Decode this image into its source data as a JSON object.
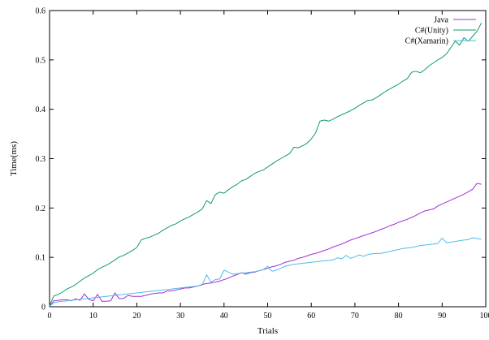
{
  "chart_data": {
    "type": "line",
    "xlabel": "Trials",
    "ylabel": "Time(ms)",
    "xlim": [
      0,
      100
    ],
    "ylim": [
      0,
      0.6
    ],
    "x_ticks": [
      "0",
      "10",
      "20",
      "30",
      "40",
      "50",
      "60",
      "70",
      "80",
      "90",
      "100"
    ],
    "y_ticks": [
      "0",
      "0.1",
      "0.2",
      "0.3",
      "0.4",
      "0.5",
      "0.6"
    ],
    "grid": false,
    "legend_position": "top-right",
    "x": [
      0,
      1,
      2,
      3,
      4,
      5,
      6,
      7,
      8,
      9,
      10,
      11,
      12,
      13,
      14,
      15,
      16,
      17,
      18,
      19,
      20,
      21,
      22,
      23,
      24,
      25,
      26,
      27,
      28,
      29,
      30,
      31,
      32,
      33,
      34,
      35,
      36,
      37,
      38,
      39,
      40,
      41,
      42,
      43,
      44,
      45,
      46,
      47,
      48,
      49,
      50,
      51,
      52,
      53,
      54,
      55,
      56,
      57,
      58,
      59,
      60,
      61,
      62,
      63,
      64,
      65,
      66,
      67,
      68,
      69,
      70,
      71,
      72,
      73,
      74,
      75,
      76,
      77,
      78,
      79,
      80,
      81,
      82,
      83,
      84,
      85,
      86,
      87,
      88,
      89,
      90,
      91,
      92,
      93,
      94,
      95,
      96,
      97,
      98,
      99
    ],
    "series": [
      {
        "name": "Java",
        "color": "#9f2fd4",
        "values": [
          0.001,
          0.012,
          0.013,
          0.014,
          0.014,
          0.012,
          0.016,
          0.013,
          0.026,
          0.015,
          0.012,
          0.025,
          0.011,
          0.011,
          0.012,
          0.028,
          0.016,
          0.017,
          0.023,
          0.021,
          0.021,
          0.021,
          0.023,
          0.025,
          0.027,
          0.028,
          0.028,
          0.032,
          0.032,
          0.034,
          0.036,
          0.038,
          0.038,
          0.04,
          0.042,
          0.045,
          0.047,
          0.048,
          0.05,
          0.052,
          0.055,
          0.058,
          0.062,
          0.065,
          0.069,
          0.066,
          0.069,
          0.07,
          0.073,
          0.075,
          0.078,
          0.081,
          0.083,
          0.086,
          0.09,
          0.092,
          0.094,
          0.098,
          0.1,
          0.103,
          0.106,
          0.108,
          0.111,
          0.114,
          0.117,
          0.121,
          0.124,
          0.127,
          0.131,
          0.135,
          0.138,
          0.141,
          0.144,
          0.147,
          0.15,
          0.153,
          0.157,
          0.16,
          0.164,
          0.167,
          0.171,
          0.174,
          0.177,
          0.181,
          0.185,
          0.19,
          0.194,
          0.196,
          0.198,
          0.204,
          0.208,
          0.212,
          0.216,
          0.22,
          0.224,
          0.228,
          0.233,
          0.238,
          0.25,
          0.248
        ]
      },
      {
        "name": "C#(Unity)",
        "color": "#109a6e",
        "values": [
          0.002,
          0.022,
          0.025,
          0.03,
          0.036,
          0.04,
          0.045,
          0.052,
          0.058,
          0.063,
          0.068,
          0.075,
          0.08,
          0.084,
          0.089,
          0.095,
          0.101,
          0.104,
          0.109,
          0.114,
          0.12,
          0.135,
          0.139,
          0.141,
          0.145,
          0.149,
          0.155,
          0.16,
          0.165,
          0.168,
          0.174,
          0.178,
          0.182,
          0.187,
          0.192,
          0.198,
          0.215,
          0.209,
          0.227,
          0.232,
          0.23,
          0.237,
          0.243,
          0.248,
          0.255,
          0.258,
          0.264,
          0.27,
          0.274,
          0.277,
          0.283,
          0.289,
          0.295,
          0.3,
          0.305,
          0.31,
          0.323,
          0.322,
          0.326,
          0.331,
          0.34,
          0.352,
          0.376,
          0.378,
          0.376,
          0.38,
          0.385,
          0.389,
          0.393,
          0.397,
          0.402,
          0.408,
          0.413,
          0.418,
          0.419,
          0.424,
          0.43,
          0.436,
          0.441,
          0.446,
          0.451,
          0.457,
          0.462,
          0.475,
          0.477,
          0.474,
          0.48,
          0.488,
          0.494,
          0.5,
          0.505,
          0.512,
          0.525,
          0.538,
          0.53,
          0.545,
          0.538,
          0.548,
          0.558,
          0.575
        ]
      },
      {
        "name": "C#(Xamarin)",
        "color": "#4cbce8",
        "values": [
          0.001,
          0.008,
          0.01,
          0.011,
          0.012,
          0.013,
          0.014,
          0.015,
          0.016,
          0.017,
          0.018,
          0.019,
          0.02,
          0.021,
          0.022,
          0.023,
          0.024,
          0.025,
          0.026,
          0.027,
          0.028,
          0.029,
          0.03,
          0.031,
          0.032,
          0.033,
          0.034,
          0.035,
          0.036,
          0.037,
          0.038,
          0.039,
          0.04,
          0.041,
          0.042,
          0.044,
          0.065,
          0.05,
          0.055,
          0.056,
          0.074,
          0.07,
          0.066,
          0.067,
          0.068,
          0.069,
          0.07,
          0.071,
          0.073,
          0.075,
          0.082,
          0.072,
          0.074,
          0.078,
          0.082,
          0.084,
          0.086,
          0.087,
          0.088,
          0.089,
          0.09,
          0.091,
          0.092,
          0.093,
          0.094,
          0.095,
          0.099,
          0.097,
          0.104,
          0.098,
          0.101,
          0.105,
          0.102,
          0.106,
          0.107,
          0.108,
          0.108,
          0.11,
          0.112,
          0.114,
          0.116,
          0.118,
          0.119,
          0.12,
          0.122,
          0.124,
          0.125,
          0.126,
          0.127,
          0.128,
          0.139,
          0.13,
          0.131,
          0.132,
          0.134,
          0.135,
          0.136,
          0.14,
          0.138,
          0.137
        ]
      }
    ]
  }
}
